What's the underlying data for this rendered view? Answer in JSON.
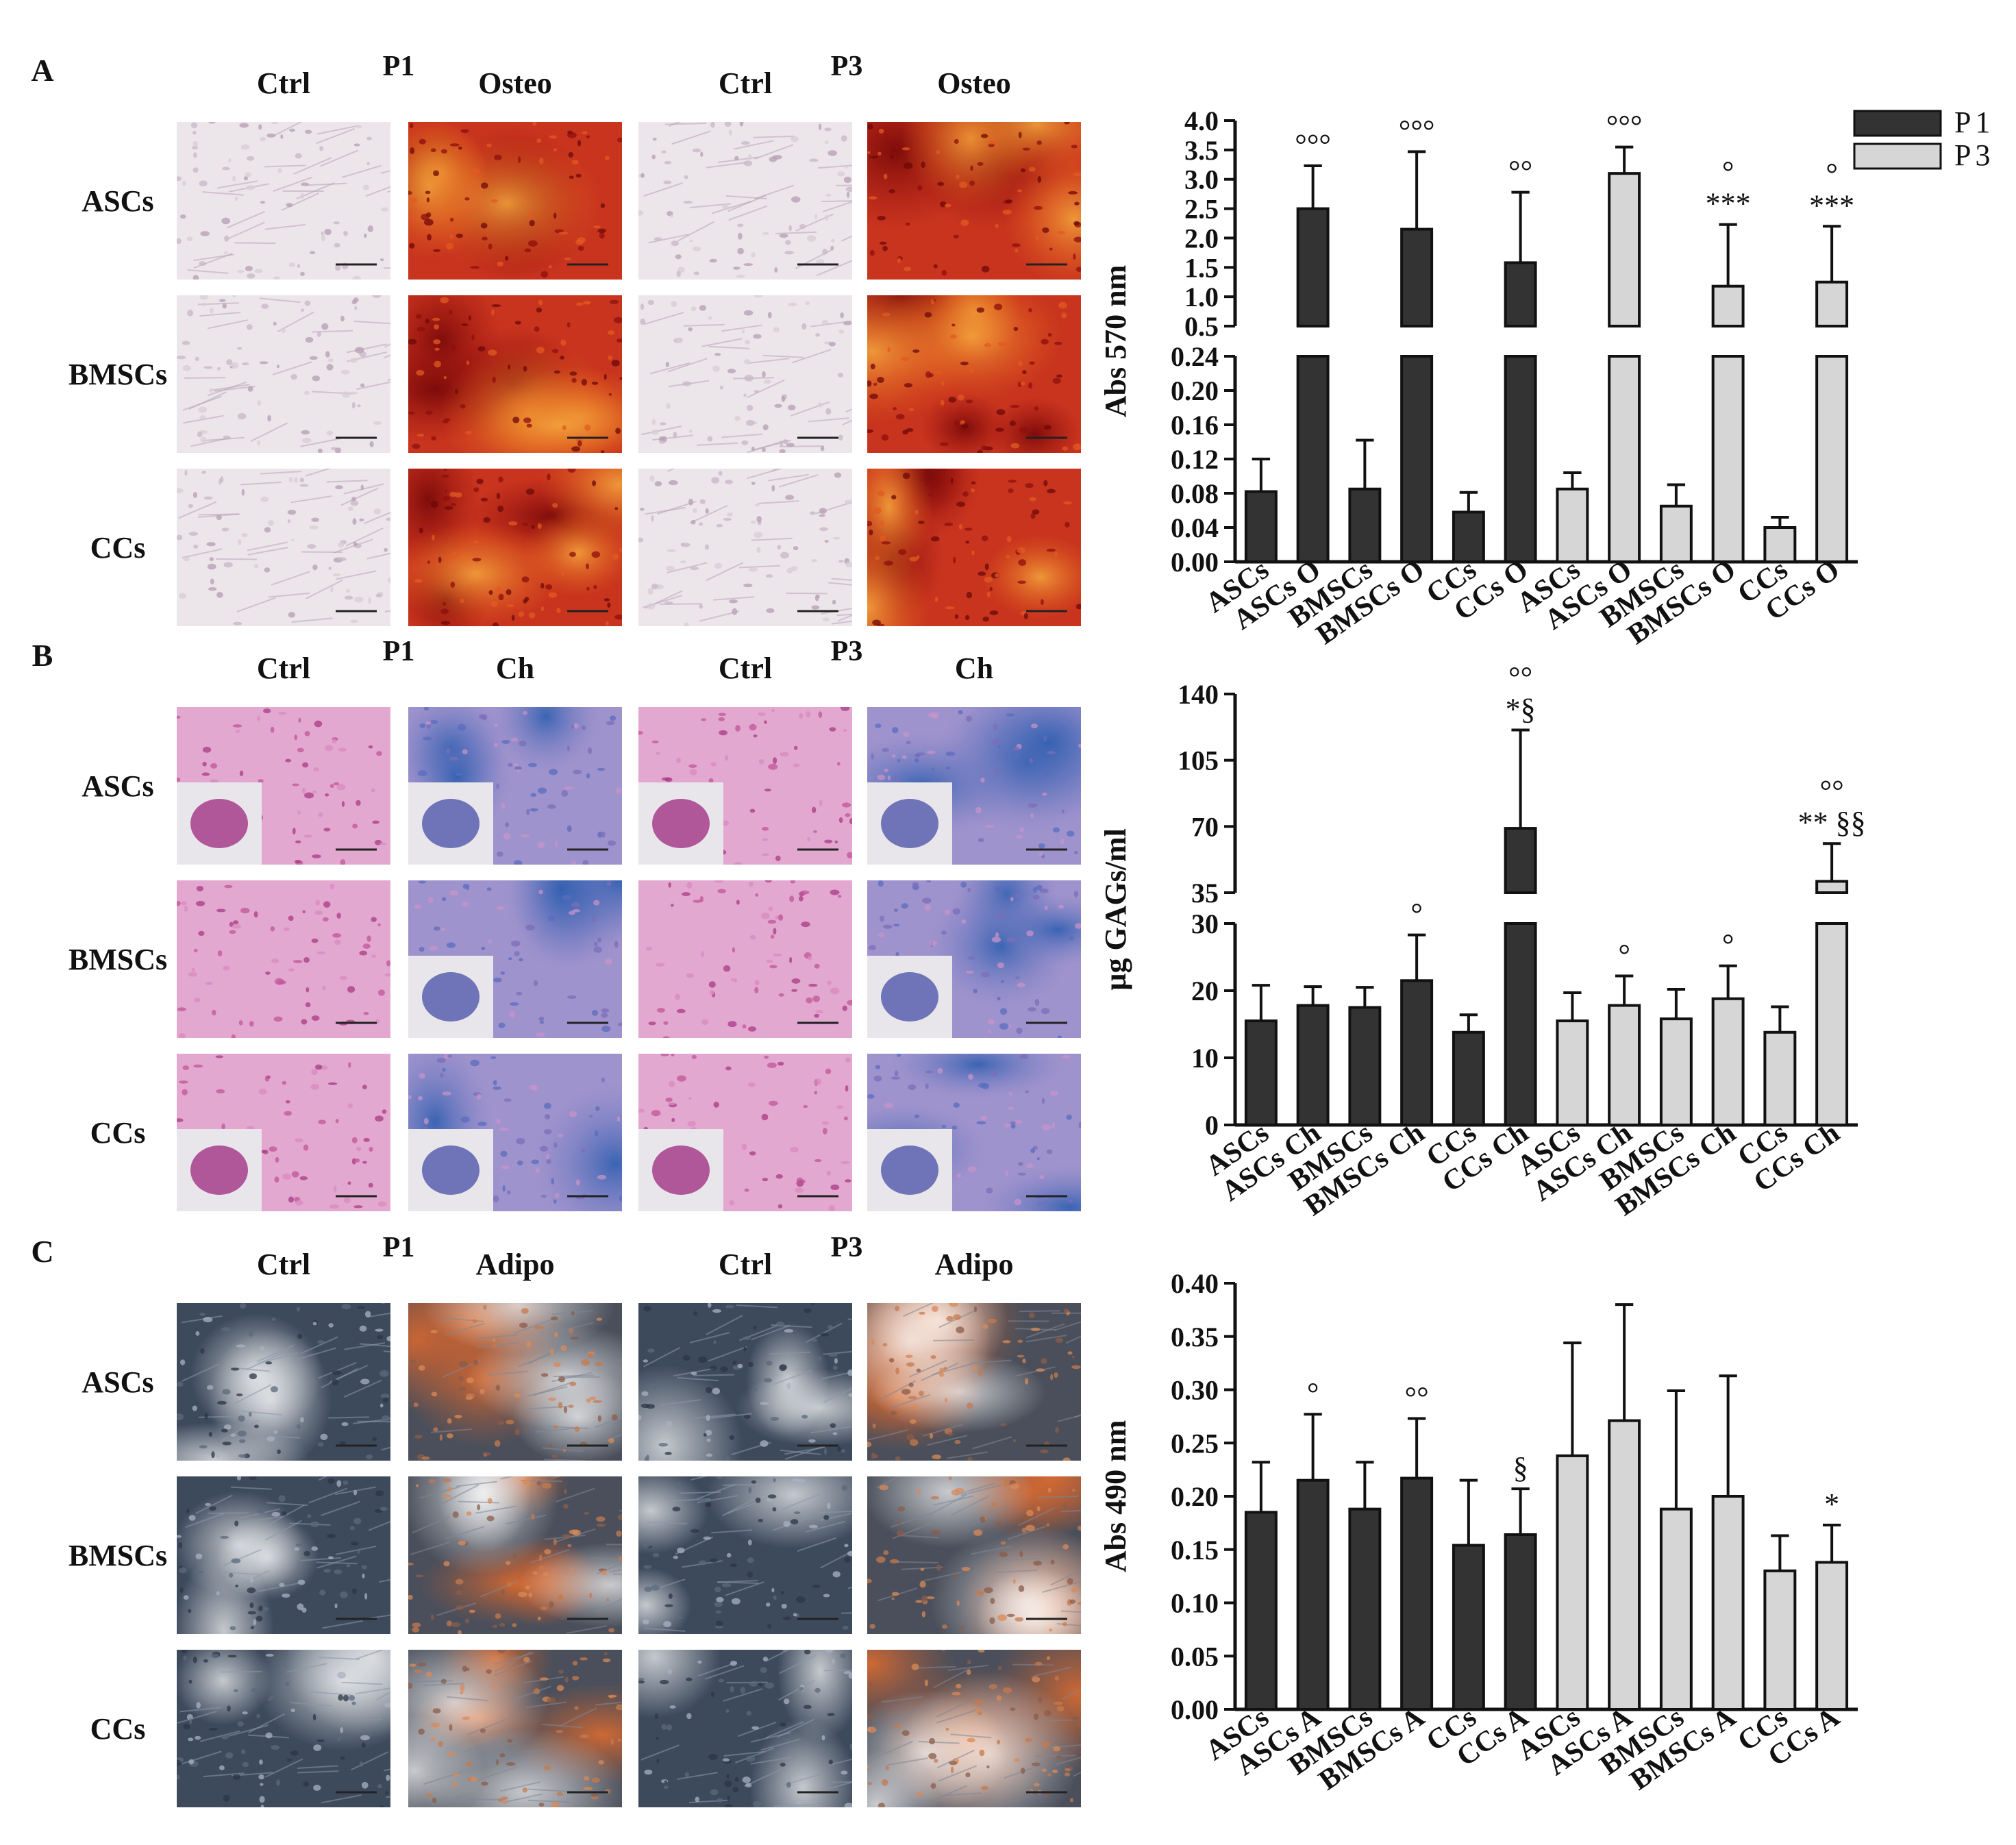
{
  "legend": {
    "items": [
      {
        "label": "P1",
        "color": "#333333"
      },
      {
        "label": "P3",
        "color": "#d6d6d6"
      }
    ]
  },
  "panels": [
    {
      "letter": "A",
      "group_headers": [
        "P1",
        "P3"
      ],
      "column_headers": [
        "Ctrl",
        "Osteo",
        "Ctrl",
        "Osteo"
      ],
      "row_labels": [
        "ASCs",
        "BMSCs",
        "CCs"
      ],
      "image_styles": [
        "alizarin-red-control",
        "alizarin-red-osteo",
        "alizarin-red-control",
        "alizarin-red-osteo"
      ]
    },
    {
      "letter": "B",
      "group_headers": [
        "P1",
        "P3"
      ],
      "column_headers": [
        "Ctrl",
        "Ch",
        "Ctrl",
        "Ch"
      ],
      "row_labels": [
        "ASCs",
        "BMSCs",
        "CCs"
      ],
      "image_styles": [
        "he-pellet-control",
        "alcian-blue-pellet",
        "he-pellet-control",
        "alcian-blue-pellet"
      ]
    },
    {
      "letter": "C",
      "group_headers": [
        "P1",
        "P3"
      ],
      "column_headers": [
        "Ctrl",
        "Adipo",
        "Ctrl",
        "Adipo"
      ],
      "row_labels": [
        "ASCs",
        "BMSCs",
        "CCs"
      ],
      "image_styles": [
        "oil-red-control",
        "oil-red-adipo",
        "oil-red-control",
        "oil-red-adipo"
      ]
    }
  ],
  "chart_data": [
    {
      "type": "bar",
      "ylabel": "Abs 570 nm",
      "broken_axis": true,
      "upper_ylim": [
        0.5,
        4.0
      ],
      "upper_ticks": [
        "0.5",
        "1.0",
        "1.5",
        "2.0",
        "2.5",
        "3.0",
        "3.5",
        "4.0"
      ],
      "lower_ylim": [
        0,
        0.24
      ],
      "lower_ticks": [
        "0.00",
        "0.04",
        "0.08",
        "0.12",
        "0.16",
        "0.20",
        "0.24"
      ],
      "categories": [
        "ASCs",
        "ASCs O",
        "BMSCs",
        "BMSCs O",
        "CCs",
        "CCs O",
        "ASCs",
        "ASCs O",
        "BMSCs",
        "BMSCs O",
        "CCs",
        "CCs O"
      ],
      "values": [
        0.082,
        2.5,
        0.085,
        2.15,
        0.058,
        1.58,
        0.085,
        3.1,
        0.065,
        1.18,
        0.04,
        1.25
      ],
      "errors": [
        0.038,
        0.73,
        0.057,
        1.32,
        0.023,
        1.2,
        0.019,
        0.45,
        0.025,
        1.05,
        0.012,
        0.95
      ],
      "group": [
        "P1",
        "P1",
        "P1",
        "P1",
        "P1",
        "P1",
        "P3",
        "P3",
        "P3",
        "P3",
        "P3",
        "P3"
      ],
      "annotations": [
        "",
        "°°°",
        "",
        "°°°",
        "",
        "°°",
        "",
        "°°°",
        "",
        "°\n***",
        "",
        "°\n***"
      ]
    },
    {
      "type": "bar",
      "ylabel": "µg GAGs/ml",
      "broken_axis": true,
      "upper_ylim": [
        35,
        140
      ],
      "upper_ticks": [
        "35",
        "70",
        "105",
        "140"
      ],
      "lower_ylim": [
        0,
        30
      ],
      "lower_ticks": [
        "0",
        "10",
        "20",
        "30"
      ],
      "categories": [
        "ASCs",
        "ASCs Ch",
        "BMSCs",
        "BMSCs Ch",
        "CCs",
        "CCs Ch",
        "ASCs",
        "ASCs Ch",
        "BMSCs",
        "BMSCs Ch",
        "CCs",
        "CCs Ch"
      ],
      "values": [
        15.5,
        17.8,
        17.5,
        21.5,
        13.8,
        69,
        15.5,
        17.8,
        15.8,
        18.8,
        13.8,
        41
      ],
      "errors": [
        5.3,
        2.8,
        3.0,
        6.8,
        2.6,
        52,
        4.2,
        4.4,
        4.4,
        4.9,
        3.8,
        20
      ],
      "group": [
        "P1",
        "P1",
        "P1",
        "P1",
        "P1",
        "P1",
        "P3",
        "P3",
        "P3",
        "P3",
        "P3",
        "P3"
      ],
      "annotations": [
        "",
        "",
        "",
        "°",
        "",
        "°°\n*§",
        "",
        "°",
        "",
        "°",
        "",
        "°°\n** §§"
      ]
    },
    {
      "type": "bar",
      "ylabel": "Abs 490 nm",
      "broken_axis": false,
      "ylim": [
        0,
        0.4
      ],
      "ticks": [
        "0.00",
        "0.05",
        "0.10",
        "0.15",
        "0.20",
        "0.25",
        "0.30",
        "0.35",
        "0.40"
      ],
      "categories": [
        "ASCs",
        "ASCs A",
        "BMSCs",
        "BMSCs A",
        "CCs",
        "CCs A",
        "ASCs",
        "ASCs A",
        "BMSCs",
        "BMSCs A",
        "CCs",
        "CCs A"
      ],
      "values": [
        0.185,
        0.215,
        0.188,
        0.217,
        0.154,
        0.164,
        0.238,
        0.271,
        0.188,
        0.2,
        0.13,
        0.138
      ],
      "errors": [
        0.047,
        0.062,
        0.044,
        0.056,
        0.061,
        0.043,
        0.106,
        0.109,
        0.111,
        0.113,
        0.033,
        0.035
      ],
      "group": [
        "P1",
        "P1",
        "P1",
        "P1",
        "P1",
        "P1",
        "P3",
        "P3",
        "P3",
        "P3",
        "P3",
        "P3"
      ],
      "annotations": [
        "",
        "°",
        "",
        "°°",
        "",
        "§",
        "",
        "",
        "",
        "",
        "",
        "*"
      ]
    }
  ]
}
